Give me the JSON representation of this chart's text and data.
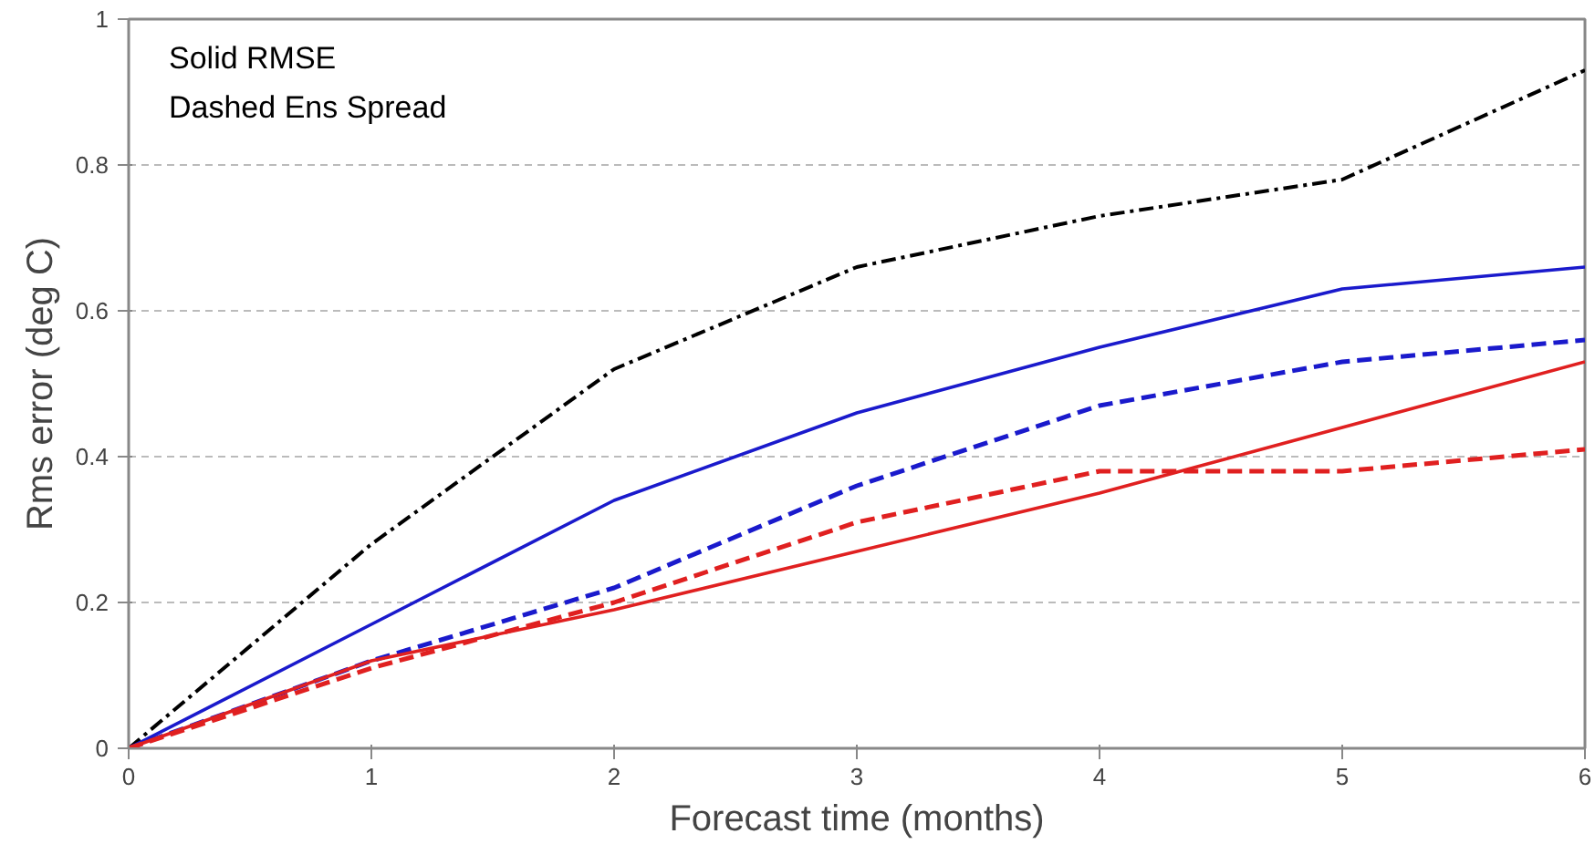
{
  "chart_data": {
    "type": "line",
    "xlabel": "Forecast time (months)",
    "ylabel": "Rms error (deg C)",
    "x": [
      0,
      1,
      2,
      3,
      4,
      5,
      6
    ],
    "xlim": [
      0,
      6
    ],
    "xticks": [
      0,
      1,
      2,
      3,
      4,
      5,
      6
    ],
    "ylim": [
      0,
      1
    ],
    "yticks": [
      0,
      0.2,
      0.4,
      0.6,
      0.8,
      1
    ],
    "grid": "y",
    "annotations": [
      "Solid RMSE",
      "Dashed Ens Spread"
    ],
    "series": [
      {
        "color": "#000000",
        "line_style": "dashdot",
        "values": [
          0,
          0.28,
          0.52,
          0.66,
          0.73,
          0.78,
          0.93
        ]
      },
      {
        "color": "#1a1acc",
        "line_style": "solid",
        "values": [
          0,
          0.17,
          0.34,
          0.46,
          0.55,
          0.63,
          0.66
        ]
      },
      {
        "color": "#1a1acc",
        "line_style": "dashed",
        "values": [
          0,
          0.12,
          0.22,
          0.36,
          0.47,
          0.53,
          0.56
        ]
      },
      {
        "color": "#e02020",
        "line_style": "solid",
        "values": [
          0,
          0.12,
          0.19,
          0.27,
          0.35,
          0.44,
          0.53
        ]
      },
      {
        "color": "#e02020",
        "line_style": "dashed",
        "values": [
          0,
          0.11,
          0.2,
          0.31,
          0.38,
          0.38,
          0.41
        ]
      }
    ]
  }
}
